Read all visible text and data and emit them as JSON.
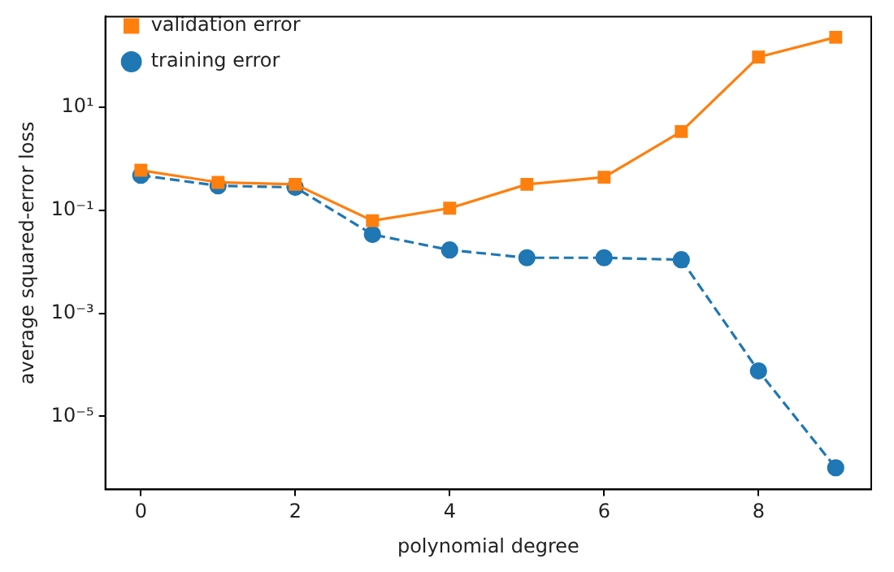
{
  "chart_data": {
    "type": "line",
    "xlabel": "polynomial degree",
    "ylabel": "average squared-error loss",
    "x": [
      0,
      1,
      2,
      3,
      4,
      5,
      6,
      7,
      8,
      9
    ],
    "series": [
      {
        "name": "training error",
        "color": "#1f77b4",
        "marker": "circle",
        "line_style": "dashed",
        "values": [
          0.48,
          0.3,
          0.28,
          0.034,
          0.017,
          0.012,
          0.012,
          0.011,
          7.6e-05,
          1e-06
        ]
      },
      {
        "name": "validation error",
        "color": "#ff7f0e",
        "marker": "square",
        "line_style": "solid",
        "values": [
          0.6,
          0.35,
          0.32,
          0.063,
          0.11,
          0.32,
          0.44,
          3.4,
          95,
          230
        ]
      }
    ],
    "xlim": [
      -0.46,
      9.46
    ],
    "xticks": [
      0,
      2,
      4,
      6,
      8
    ],
    "ylim": [
      3.8e-07,
      580
    ],
    "yticks": [
      {
        "value": 1e-05,
        "label": "10⁻⁵"
      },
      {
        "value": 0.001,
        "label": "10⁻³"
      },
      {
        "value": 0.1,
        "label": "10⁻¹"
      },
      {
        "value": 10,
        "label": "10¹"
      }
    ],
    "log": "y",
    "grid": false,
    "legend": "top left"
  }
}
